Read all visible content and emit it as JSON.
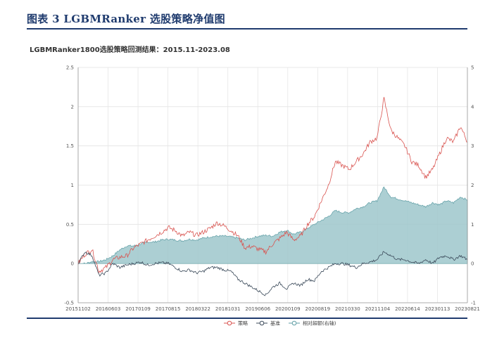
{
  "header": {
    "figure_title": "图表 3   LGBMRanker 选股策略净值图"
  },
  "chart_data": {
    "type": "line",
    "title": "LGBMRanker1800选股策略回测结果：2015.11-2023.08",
    "x_ticks": [
      "20151102",
      "20160603",
      "20170109",
      "20170815",
      "20180322",
      "20181031",
      "20190606",
      "20200109",
      "20200819",
      "20210330",
      "20211104",
      "20220614",
      "20230113",
      "20230821"
    ],
    "ylim_left": [
      -0.5,
      2.5
    ],
    "yticks_left": [
      "-0.5",
      "0",
      "0.5",
      "1",
      "1.5",
      "2",
      "2.5"
    ],
    "ylim_right": [
      -1,
      5
    ],
    "yticks_right": [
      "-1",
      "0",
      "1",
      "2",
      "3",
      "4",
      "5"
    ],
    "grid": true,
    "legend_position": "bottom",
    "colors": {
      "strategy": "#d9534f",
      "benchmark": "#3b4a5a",
      "excess_fill": "#9ec7cb",
      "excess_line": "#5f9ea5"
    },
    "series": [
      {
        "name": "策略",
        "axis": "left",
        "style": "line",
        "values": [
          0.0,
          0.12,
          0.18,
          -0.1,
          -0.05,
          0.05,
          0.08,
          0.1,
          0.2,
          0.25,
          0.3,
          0.35,
          0.4,
          0.46,
          0.42,
          0.35,
          0.4,
          0.36,
          0.4,
          0.45,
          0.52,
          0.48,
          0.42,
          0.35,
          0.2,
          0.22,
          0.18,
          0.15,
          0.25,
          0.32,
          0.4,
          0.3,
          0.35,
          0.5,
          0.6,
          0.8,
          1.0,
          1.3,
          1.25,
          1.2,
          1.3,
          1.4,
          1.55,
          1.6,
          2.1,
          1.7,
          1.6,
          1.5,
          1.3,
          1.25,
          1.1,
          1.2,
          1.4,
          1.6,
          1.55,
          1.75,
          1.55
        ]
      },
      {
        "name": "基准",
        "axis": "left",
        "style": "line",
        "values": [
          0.0,
          0.15,
          0.1,
          -0.15,
          -0.12,
          0.0,
          -0.05,
          -0.02,
          0.0,
          0.02,
          -0.02,
          0.0,
          0.01,
          0.0,
          -0.05,
          -0.1,
          -0.08,
          -0.12,
          -0.1,
          -0.05,
          -0.05,
          -0.08,
          -0.1,
          -0.2,
          -0.25,
          -0.3,
          -0.35,
          -0.4,
          -0.3,
          -0.25,
          -0.32,
          -0.25,
          -0.28,
          -0.2,
          -0.22,
          -0.1,
          -0.05,
          0.0,
          0.0,
          -0.02,
          -0.05,
          0.0,
          0.02,
          0.05,
          0.15,
          0.1,
          0.05,
          0.05,
          0.02,
          0.0,
          0.05,
          0.0,
          0.08,
          0.1,
          0.05,
          0.1,
          0.05
        ]
      },
      {
        "name": "相对超额(右轴)",
        "axis": "right",
        "style": "area",
        "values": [
          0.0,
          0.0,
          0.05,
          0.05,
          0.1,
          0.2,
          0.35,
          0.45,
          0.45,
          0.5,
          0.55,
          0.55,
          0.6,
          0.62,
          0.6,
          0.58,
          0.62,
          0.6,
          0.65,
          0.68,
          0.7,
          0.7,
          0.68,
          0.65,
          0.6,
          0.65,
          0.7,
          0.72,
          0.7,
          0.8,
          0.85,
          0.75,
          0.8,
          0.9,
          1.0,
          1.1,
          1.2,
          1.35,
          1.3,
          1.3,
          1.4,
          1.45,
          1.55,
          1.6,
          1.95,
          1.7,
          1.65,
          1.6,
          1.55,
          1.5,
          1.45,
          1.55,
          1.5,
          1.6,
          1.55,
          1.7,
          1.62
        ]
      }
    ]
  }
}
